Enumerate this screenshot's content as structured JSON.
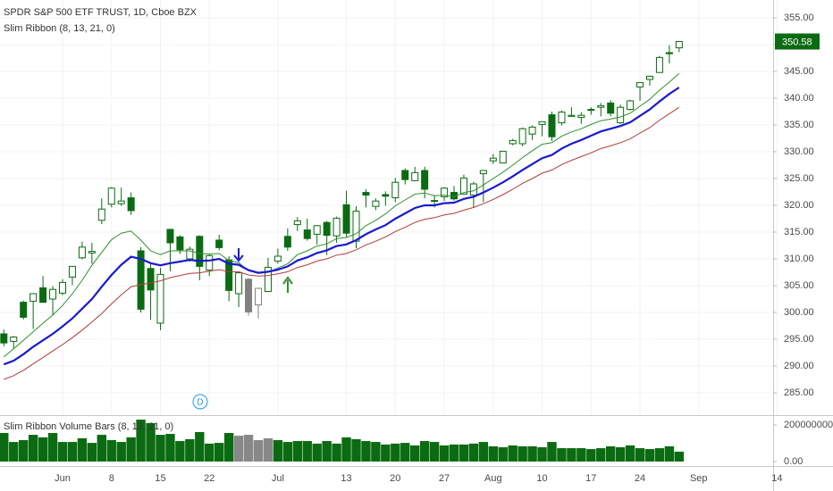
{
  "chart_data": {
    "type": "candlestick",
    "title": "SPDR S&P 500 ETF TRUST, 1D, Cboe BZX",
    "categories": [
      null,
      null,
      null,
      null,
      null,
      null,
      "Jun",
      null,
      null,
      null,
      null,
      "8",
      null,
      null,
      null,
      null,
      "15",
      null,
      null,
      null,
      null,
      "22",
      null,
      null,
      null,
      null,
      null,
      null,
      "Jul",
      null,
      null,
      null,
      null,
      null,
      null,
      "13",
      null,
      null,
      null,
      null,
      "20",
      null,
      null,
      null,
      null,
      "27",
      null,
      null,
      null,
      null,
      "Aug",
      null,
      null,
      null,
      null,
      "10",
      null,
      null,
      null,
      null,
      "17",
      null,
      null,
      null,
      null,
      "24",
      null,
      null,
      null,
      null,
      null,
      "Sep",
      null,
      null,
      null,
      null,
      null,
      null,
      null,
      "14"
    ],
    "open": [
      296.0,
      294.6,
      301.9,
      302.1,
      304.6,
      302.5,
      303.6,
      306.6,
      310.2,
      311.1,
      317.2,
      320.2,
      320.3,
      321.4,
      311.5,
      308.2,
      298.0,
      315.5,
      314.1,
      310.0,
      314.2,
      307.9,
      313.5,
      309.8,
      303.5,
      306.2,
      301.4,
      303.9,
      309.6,
      314.2,
      316.4,
      315.4,
      314.6,
      316.8,
      314.3,
      320.1,
      313.3,
      322.4,
      319.8,
      322.0,
      321.4,
      326.5,
      324.6,
      326.5,
      320.9,
      321.6,
      322.4,
      322.1,
      321.9,
      325.9,
      328.3,
      327.9,
      331.5,
      331.5,
      333.3,
      335.1,
      336.9,
      335.4,
      336.6,
      336.4,
      337.9,
      338.3,
      339.1,
      335.4,
      337.9,
      342.1,
      343.5,
      344.8,
      348.5,
      349.4,
      null,
      null,
      null,
      null,
      null,
      null,
      null,
      null,
      null,
      null
    ],
    "high": [
      296.8,
      295.6,
      302.2,
      303.6,
      306.8,
      304.9,
      306.2,
      308.6,
      313.2,
      313.0,
      321.3,
      323.4,
      323.3,
      322.4,
      312.2,
      309.1,
      308.3,
      315.6,
      314.4,
      312.3,
      314.4,
      311.0,
      314.5,
      310.5,
      307.6,
      306.4,
      304.6,
      310.2,
      311.9,
      315.7,
      317.8,
      317.5,
      316.3,
      317.1,
      317.9,
      322.7,
      319.8,
      323.0,
      321.3,
      322.6,
      325.1,
      326.9,
      327.2,
      327.2,
      321.9,
      323.4,
      323.6,
      325.7,
      324.4,
      326.6,
      329.6,
      330.1,
      332.4,
      334.5,
      334.9,
      335.6,
      337.5,
      337.7,
      338.3,
      337.4,
      338.3,
      339.1,
      339.6,
      338.8,
      339.7,
      343.0,
      344.2,
      347.9,
      349.9,
      350.7,
      null,
      null,
      null,
      null,
      null,
      null,
      null,
      null,
      null,
      null
    ],
    "low": [
      293.7,
      293.2,
      298.7,
      296.9,
      301.9,
      299.5,
      303.2,
      305.1,
      309.9,
      309.1,
      316.5,
      319.6,
      319.9,
      318.2,
      300.0,
      298.6,
      296.7,
      307.7,
      310.9,
      309.5,
      306.0,
      306.8,
      311.6,
      302.1,
      301.0,
      299.4,
      298.9,
      303.8,
      309.1,
      311.5,
      315.2,
      313.4,
      312.7,
      310.7,
      313.0,
      314.1,
      312.0,
      319.6,
      319.1,
      319.9,
      320.6,
      323.9,
      324.5,
      321.3,
      319.6,
      320.8,
      320.9,
      322.1,
      319.6,
      320.6,
      327.7,
      327.9,
      331.2,
      331.0,
      332.2,
      332.9,
      332.0,
      334.9,
      336.5,
      335.2,
      336.9,
      336.6,
      336.6,
      335.2,
      337.7,
      339.5,
      342.3,
      344.7,
      346.5,
      348.6,
      null,
      null,
      null,
      null,
      null,
      null,
      null,
      null,
      null,
      null
    ],
    "close": [
      294.3,
      295.4,
      299.1,
      303.5,
      301.9,
      304.3,
      305.6,
      308.6,
      312.2,
      311.4,
      319.3,
      323.2,
      320.8,
      319.0,
      300.6,
      304.2,
      307.1,
      313.0,
      311.7,
      311.8,
      308.6,
      310.6,
      312.1,
      304.1,
      307.4,
      300.1,
      304.5,
      308.4,
      310.5,
      312.2,
      317.1,
      313.8,
      316.2,
      314.4,
      317.6,
      314.8,
      318.9,
      321.9,
      320.8,
      321.7,
      324.3,
      324.8,
      326.1,
      323.0,
      320.9,
      323.2,
      321.2,
      325.1,
      324.0,
      326.5,
      328.8,
      330.1,
      332.1,
      334.3,
      334.6,
      335.6,
      332.8,
      337.4,
      336.8,
      336.8,
      337.9,
      338.6,
      337.2,
      338.3,
      339.5,
      342.9,
      344.1,
      347.6,
      348.3,
      350.58,
      null,
      null,
      null,
      null,
      null,
      null,
      null,
      null,
      null,
      null
    ],
    "candle_colors": [
      "#0b6b12",
      "#0b6b12",
      "#0b6b12",
      "#0b6b12",
      "#0b6b12",
      "#0b6b12",
      "#0b6b12",
      "#0b6b12",
      "#0b6b12",
      "#0b6b12",
      "#0b6b12",
      "#0b6b12",
      "#0b6b12",
      "#0b6b12",
      "#0b6b12",
      "#0b6b12",
      "#0b6b12",
      "#0b6b12",
      "#0b6b12",
      "#0b6b12",
      "#0b6b12",
      "#0b6b12",
      "#0b6b12",
      "#0b6b12",
      "#0b6b12",
      "#808080",
      "#808080",
      "#0b6b12",
      "#0b6b12",
      "#0b6b12",
      "#0b6b12",
      "#0b6b12",
      "#0b6b12",
      "#0b6b12",
      "#0b6b12",
      "#0b6b12",
      "#0b6b12",
      "#0b6b12",
      "#0b6b12",
      "#0b6b12",
      "#0b6b12",
      "#0b6b12",
      "#0b6b12",
      "#0b6b12",
      "#0b6b12",
      "#0b6b12",
      "#0b6b12",
      "#0b6b12",
      "#0b6b12",
      "#0b6b12",
      "#0b6b12",
      "#0b6b12",
      "#0b6b12",
      "#0b6b12",
      "#0b6b12",
      "#0b6b12",
      "#0b6b12",
      "#0b6b12",
      "#0b6b12",
      "#0b6b12",
      "#0b6b12",
      "#0b6b12",
      "#0b6b12",
      "#0b6b12",
      "#0b6b12",
      "#0b6b12",
      "#0b6b12",
      "#0b6b12",
      "#0b6b12",
      "#0b6b12",
      null,
      null,
      null,
      null,
      null,
      null,
      null,
      null,
      null,
      null
    ],
    "ylim": [
      280.83,
      358.33
    ],
    "yticks": [
      {
        "value": 285,
        "label": "285.00"
      },
      {
        "value": 290,
        "label": "290.00"
      },
      {
        "value": 295,
        "label": "295.00"
      },
      {
        "value": 300,
        "label": "300.00"
      },
      {
        "value": 305,
        "label": "305.00"
      },
      {
        "value": 310,
        "label": "310.00"
      },
      {
        "value": 315,
        "label": "315.00"
      },
      {
        "value": 320,
        "label": "320.00"
      },
      {
        "value": 325,
        "label": "325.00"
      },
      {
        "value": 330,
        "label": "330.00"
      },
      {
        "value": 335,
        "label": "335.00"
      },
      {
        "value": 340,
        "label": "340.00"
      },
      {
        "value": 345,
        "label": "345.00"
      },
      {
        "value": 350,
        "label": "350.00"
      },
      {
        "value": 355,
        "label": "355.00"
      }
    ],
    "grid": true,
    "ribbon": {
      "label": "Slim Ribbon (8, 13, 21, 0)",
      "series": [
        {
          "color": "#2f8f2f",
          "width": 1,
          "values": [
            291.7,
            293.2,
            294.8,
            296.4,
            298.0,
            299.5,
            301.3,
            303.5,
            306.0,
            308.8,
            311.2,
            313.6,
            314.8,
            315.2,
            313.5,
            311.5,
            310.8,
            311.5,
            311.5,
            311.5,
            311.0,
            310.9,
            311.0,
            309.7,
            309.3,
            307.8,
            307.3,
            307.5,
            308.3,
            309.1,
            310.8,
            311.5,
            312.4,
            312.8,
            313.8,
            314.0,
            314.7,
            316.2,
            317.2,
            318.4,
            319.9,
            321.0,
            322.1,
            322.3,
            321.8,
            321.9,
            321.6,
            322.4,
            322.7,
            323.8,
            325.0,
            326.2,
            327.5,
            328.9,
            330.2,
            331.4,
            331.7,
            332.9,
            333.7,
            334.3,
            335.1,
            335.8,
            336.1,
            336.5,
            337.2,
            338.5,
            339.8,
            341.5,
            343.0,
            344.6,
            null,
            null,
            null,
            null,
            null,
            null,
            null,
            null,
            null,
            null
          ]
        },
        {
          "color": "#1a1ad0",
          "width": 2.2,
          "values": [
            290.3,
            291.0,
            292.2,
            293.6,
            294.8,
            296.0,
            297.4,
            298.9,
            300.7,
            302.5,
            304.8,
            307.0,
            308.9,
            310.4,
            310.0,
            309.2,
            308.8,
            309.2,
            309.5,
            309.8,
            309.6,
            309.7,
            310.0,
            309.1,
            308.9,
            307.9,
            307.4,
            307.6,
            308.0,
            308.6,
            309.7,
            310.3,
            311.1,
            311.6,
            312.4,
            312.7,
            313.5,
            314.6,
            315.5,
            316.3,
            317.5,
            318.5,
            319.5,
            320.0,
            320.0,
            320.4,
            320.5,
            321.2,
            321.6,
            322.4,
            323.3,
            324.3,
            325.4,
            326.6,
            327.7,
            328.8,
            329.4,
            330.6,
            331.5,
            332.2,
            333.0,
            333.8,
            334.3,
            334.8,
            335.5,
            336.7,
            337.9,
            339.4,
            340.8,
            342.0,
            null,
            null,
            null,
            null,
            null,
            null,
            null,
            null,
            null,
            null
          ]
        },
        {
          "color": "#b03a3a",
          "width": 1,
          "values": [
            287.5,
            288.2,
            289.2,
            290.4,
            291.6,
            292.8,
            294.0,
            295.3,
            296.7,
            298.2,
            299.8,
            301.6,
            303.3,
            304.8,
            305.2,
            305.5,
            305.9,
            306.5,
            306.9,
            307.3,
            307.4,
            307.7,
            308.0,
            307.6,
            307.6,
            307.0,
            306.8,
            306.9,
            307.2,
            307.6,
            308.4,
            308.9,
            309.6,
            310.0,
            310.7,
            311.0,
            311.7,
            312.6,
            313.3,
            314.1,
            315.1,
            315.9,
            316.8,
            317.4,
            317.7,
            318.2,
            318.5,
            319.1,
            319.6,
            320.3,
            321.1,
            322.0,
            323.0,
            324.1,
            325.0,
            326.0,
            326.6,
            327.6,
            328.4,
            329.1,
            329.8,
            330.6,
            331.1,
            331.7,
            332.4,
            333.5,
            334.5,
            335.9,
            337.1,
            338.3,
            null,
            null,
            null,
            null,
            null,
            null,
            null,
            null,
            null,
            null
          ]
        }
      ]
    },
    "dividend_marker": "D",
    "volume": {
      "title": "Slim Ribbon Volume Bars (8, 13, 21, 0)",
      "values": [
        156000000,
        107000000,
        117000000,
        146000000,
        132000000,
        156000000,
        107000000,
        107000000,
        127000000,
        102000000,
        146000000,
        117000000,
        107000000,
        132000000,
        229000000,
        210000000,
        146000000,
        151000000,
        112000000,
        122000000,
        161000000,
        98000000,
        102000000,
        156000000,
        141000000,
        146000000,
        117000000,
        127000000,
        117000000,
        107000000,
        112000000,
        112000000,
        98000000,
        112000000,
        98000000,
        132000000,
        122000000,
        112000000,
        107000000,
        93000000,
        98000000,
        102000000,
        88000000,
        112000000,
        107000000,
        88000000,
        93000000,
        93000000,
        98000000,
        107000000,
        83000000,
        78000000,
        88000000,
        83000000,
        83000000,
        78000000,
        107000000,
        73000000,
        73000000,
        73000000,
        68000000,
        73000000,
        83000000,
        78000000,
        88000000,
        73000000,
        68000000,
        73000000,
        83000000,
        54000000,
        null,
        null,
        null,
        null,
        null,
        null,
        null,
        null,
        null,
        null
      ],
      "colors": [
        "#0b6b12",
        "#0b6b12",
        "#0b6b12",
        "#0b6b12",
        "#0b6b12",
        "#0b6b12",
        "#0b6b12",
        "#0b6b12",
        "#0b6b12",
        "#0b6b12",
        "#0b6b12",
        "#0b6b12",
        "#0b6b12",
        "#0b6b12",
        "#0b6b12",
        "#0b6b12",
        "#0b6b12",
        "#0b6b12",
        "#0b6b12",
        "#0b6b12",
        "#0b6b12",
        "#0b6b12",
        "#0b6b12",
        "#0b6b12",
        "#888888",
        "#888888",
        "#888888",
        "#888888",
        "#0b6b12",
        "#0b6b12",
        "#0b6b12",
        "#0b6b12",
        "#0b6b12",
        "#0b6b12",
        "#0b6b12",
        "#0b6b12",
        "#0b6b12",
        "#0b6b12",
        "#0b6b12",
        "#0b6b12",
        "#0b6b12",
        "#0b6b12",
        "#0b6b12",
        "#0b6b12",
        "#0b6b12",
        "#0b6b12",
        "#0b6b12",
        "#0b6b12",
        "#0b6b12",
        "#0b6b12",
        "#0b6b12",
        "#0b6b12",
        "#0b6b12",
        "#0b6b12",
        "#0b6b12",
        "#0b6b12",
        "#0b6b12",
        "#0b6b12",
        "#0b6b12",
        "#0b6b12",
        "#0b6b12",
        "#0b6b12",
        "#0b6b12",
        "#0b6b12",
        "#0b6b12",
        "#0b6b12",
        "#0b6b12",
        "#0b6b12",
        "#0b6b12",
        "#0b6b12",
        null,
        null,
        null,
        null,
        null,
        null,
        null,
        null,
        null,
        null
      ],
      "ylim": [
        -24390000,
        243900000
      ],
      "yticks": [
        {
          "value": 0,
          "label": "0.00"
        },
        {
          "value": 200000000,
          "label": "200000000.00"
        }
      ]
    }
  }
}
